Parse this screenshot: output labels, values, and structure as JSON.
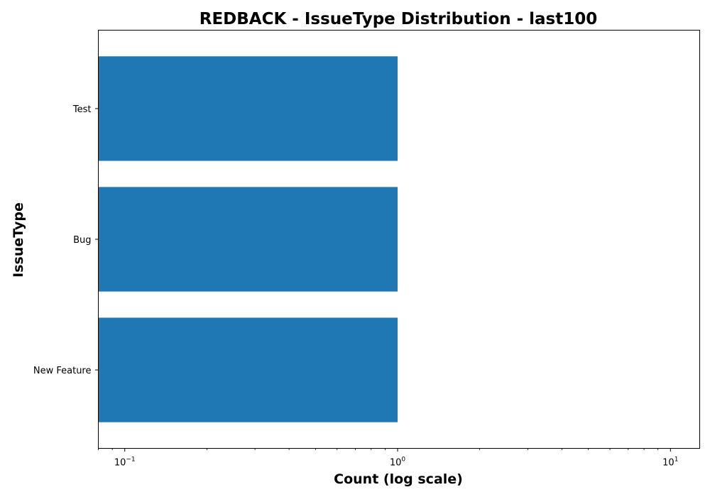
{
  "chart_data": {
    "type": "bar",
    "orientation": "horizontal",
    "title": "REDBACK - IssueType Distribution - last100",
    "xlabel": "Count (log scale)",
    "ylabel": "IssueType",
    "x_scale": "log",
    "xlim": [
      0.08,
      12.8
    ],
    "categories": [
      "New Feature",
      "Bug",
      "Test"
    ],
    "values": [
      1,
      1,
      1
    ],
    "bar_color": "#1f77b4",
    "grid": false,
    "x_ticks": [
      {
        "value": 0.1,
        "base": "10",
        "exp": "−1"
      },
      {
        "value": 1,
        "base": "10",
        "exp": "0"
      },
      {
        "value": 10,
        "base": "10",
        "exp": "1"
      }
    ]
  }
}
